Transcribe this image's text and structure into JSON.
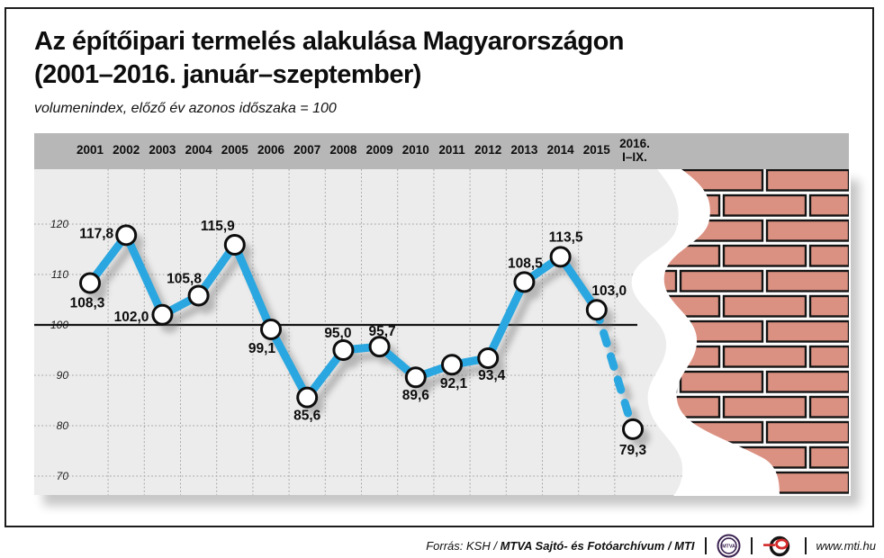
{
  "title": {
    "line1": "Az építőipari termelés alakulása Magyarországon",
    "line2": "(2001–2016. január–szeptember)"
  },
  "subtitle": "volumenindex, előző év azonos időszaka = 100",
  "chart_data": {
    "type": "line",
    "title": "Az építőipari termelés alakulása Magyarországon (2001–2016. január–szeptember)",
    "subtitle": "volumenindex, előző év azonos időszaka = 100",
    "categories": [
      "2001",
      "2002",
      "2003",
      "2004",
      "2005",
      "2006",
      "2007",
      "2008",
      "2009",
      "2010",
      "2011",
      "2012",
      "2013",
      "2014",
      "2015",
      "2016. I–IX."
    ],
    "values": [
      108.3,
      117.8,
      102.0,
      105.8,
      115.9,
      99.1,
      85.6,
      95.0,
      95.7,
      89.6,
      92.1,
      93.4,
      108.5,
      113.5,
      103.0,
      79.3
    ],
    "value_labels": [
      "108,3",
      "117,8",
      "102,0",
      "105,8",
      "115,9",
      "99,1",
      "85,6",
      "95,0",
      "95,7",
      "89,6",
      "92,1",
      "93,4",
      "108,5",
      "113,5",
      "103,0",
      "79,3"
    ],
    "y_ticks": [
      120,
      110,
      100,
      90,
      80,
      70
    ],
    "ylim": [
      66,
      125
    ],
    "baseline": 100,
    "grid": true,
    "legend": "none",
    "last_segment_style": "dashed",
    "line_color": "#2aa7e0",
    "marker": "open-circle",
    "decoration": "brick-wall-breakout"
  },
  "header": {
    "years": [
      "2001",
      "2002",
      "2003",
      "2004",
      "2005",
      "2006",
      "2007",
      "2008",
      "2009",
      "2010",
      "2011",
      "2012",
      "2013",
      "2014",
      "2015"
    ],
    "final_column": {
      "line1": "2016.",
      "line2": "I–IX."
    }
  },
  "footer": {
    "source_prefix": "Forrás: KSH / ",
    "source_bold": "MTVA Sajtó- és Fotóarchívum",
    "source_suffix": " / MTI",
    "mtva_text": "MTVA",
    "website": "www.mti.hu"
  },
  "colors": {
    "band": "#b7b7b7",
    "plot_bg": "#ececec",
    "grid": "#9e9e9e",
    "line": "#2aa7e0",
    "baseline": "#141414",
    "brick_fill": "#db9182",
    "brick_stroke": "#141414",
    "marker_fill": "#ffffff",
    "marker_stroke": "#0d0d0d",
    "mtva_logo": "#3a2150",
    "mti_logo_red": "#d42a2a"
  }
}
